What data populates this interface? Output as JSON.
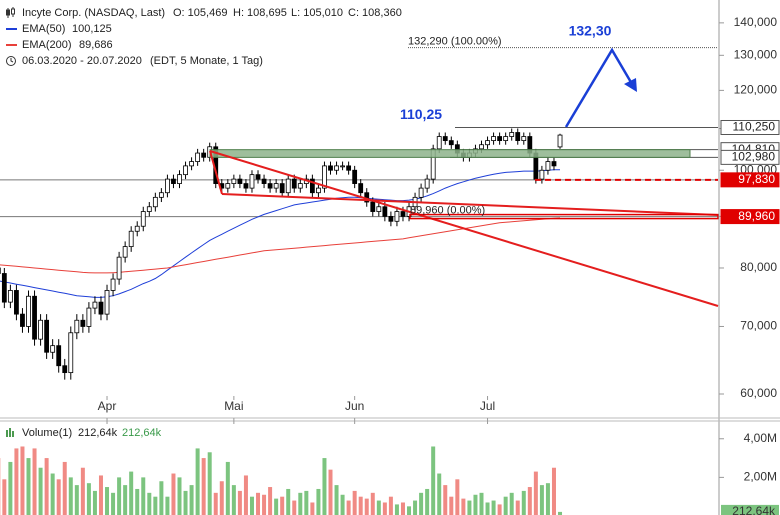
{
  "chart_data": [
    {
      "type": "candlestick",
      "title": "Incyte Corp. (NASDAQ, Last)",
      "quote": [
        "O: 105,469",
        "H: 108,695",
        "L: 105,010",
        "C: 108,360"
      ],
      "period": "06.03.2020 - 20.07.2020",
      "period_note": "(EDT, 5 Monate, 1 Tag)",
      "log_scale": true,
      "ylim": [
        56.8,
        147.5
      ],
      "yticks": [
        {
          "value": 60,
          "label": "60,000"
        },
        {
          "value": 70,
          "label": "70,000"
        },
        {
          "value": 80,
          "label": "80,000"
        },
        {
          "value": 90,
          "label": "90,000"
        },
        {
          "value": 100,
          "label": "100,000"
        },
        {
          "value": 110,
          "label": "110,000"
        },
        {
          "value": 120,
          "label": "120,000"
        },
        {
          "value": 130,
          "label": "130,000"
        },
        {
          "value": 140,
          "label": "140,000"
        }
      ],
      "categories": [
        null,
        null,
        null,
        null,
        null,
        null,
        null,
        null,
        null,
        null,
        null,
        null,
        null,
        null,
        null,
        null,
        null,
        null,
        "Apr",
        null,
        null,
        null,
        null,
        null,
        null,
        null,
        null,
        null,
        null,
        null,
        null,
        null,
        null,
        null,
        null,
        null,
        null,
        null,
        null,
        "Mai",
        null,
        null,
        null,
        null,
        null,
        null,
        null,
        null,
        null,
        null,
        null,
        null,
        null,
        null,
        null,
        null,
        null,
        null,
        null,
        "Jun",
        null,
        null,
        null,
        null,
        null,
        null,
        null,
        null,
        null,
        null,
        null,
        null,
        null,
        null,
        null,
        null,
        null,
        null,
        null,
        null,
        null,
        "Jul",
        null,
        null,
        null,
        null,
        null,
        null,
        null,
        null,
        null,
        null,
        null,
        null
      ],
      "open": [
        80,
        79,
        74,
        76,
        72,
        70,
        75,
        68,
        71,
        66,
        67,
        64,
        63,
        69,
        71,
        70,
        73,
        74,
        72,
        76,
        78,
        82,
        84,
        87,
        88,
        91,
        92,
        94,
        95,
        98,
        97,
        99,
        101,
        102,
        104,
        103,
        105.5,
        97,
        96,
        97,
        98,
        97,
        96,
        99,
        98,
        97,
        96,
        97,
        95,
        98,
        96,
        97,
        98,
        95,
        96,
        101,
        100,
        101,
        101,
        100,
        97,
        95,
        93,
        91,
        92,
        90,
        89,
        91,
        90,
        92,
        94,
        96,
        98,
        105,
        108,
        107,
        106,
        104,
        103,
        104,
        105,
        106,
        107,
        108,
        107,
        108,
        109,
        107,
        108,
        104,
        98,
        100,
        102,
        105.469
      ],
      "high": [
        81,
        80,
        77,
        77,
        73,
        76,
        76,
        72,
        72,
        68,
        68,
        65,
        70,
        72,
        72,
        74,
        75,
        75,
        77,
        79,
        83,
        85,
        88,
        89,
        92,
        93,
        95,
        96,
        99,
        99,
        100,
        102,
        103,
        105,
        105,
        106.5,
        106.5,
        98,
        98,
        99,
        99,
        98,
        100,
        100,
        99,
        98,
        98,
        98,
        99,
        99,
        98,
        99,
        99,
        97,
        102,
        102,
        102,
        102,
        102,
        101,
        98,
        96,
        94,
        93,
        93,
        91,
        92,
        92,
        93,
        95,
        97,
        99,
        106,
        109,
        109,
        108,
        107,
        105,
        105,
        106,
        107,
        108,
        109,
        109,
        109,
        110,
        110,
        109,
        109,
        105,
        101,
        103,
        103,
        108.695
      ],
      "low": [
        78,
        73,
        73,
        71,
        69,
        69,
        67,
        67,
        65,
        65,
        63,
        62,
        62,
        68,
        69,
        69,
        72,
        71,
        71,
        75,
        77,
        81,
        83,
        86,
        87,
        90,
        91,
        93,
        94,
        96,
        96,
        98,
        100,
        101,
        102,
        102,
        96,
        95,
        95,
        96,
        96,
        95,
        95,
        97,
        96,
        95,
        95,
        94,
        94,
        95,
        95,
        96,
        94,
        94,
        95,
        99,
        99,
        100,
        99,
        96,
        94,
        92,
        90,
        90,
        89,
        88,
        88,
        89,
        89,
        91,
        93,
        95,
        97,
        104,
        106,
        105,
        103,
        102,
        102,
        103,
        104,
        105,
        106,
        106,
        106,
        107,
        106,
        106,
        103,
        97,
        97,
        99,
        100,
        105.01
      ],
      "close": [
        79,
        74,
        76,
        72,
        70,
        75,
        68,
        71,
        66,
        67,
        64,
        63,
        69,
        71,
        70,
        73,
        74,
        72,
        76,
        78,
        82,
        84,
        87,
        88,
        91,
        92,
        94,
        95,
        98,
        97,
        99,
        101,
        102,
        104,
        103,
        105.5,
        97,
        96,
        97,
        98,
        97,
        96,
        99,
        98,
        97,
        96,
        97,
        95,
        98,
        96,
        97,
        98,
        95,
        96,
        101,
        100,
        101,
        101,
        100,
        97,
        95,
        93,
        91,
        92,
        90,
        89,
        91,
        90,
        92,
        94,
        96,
        98,
        105,
        108,
        107,
        106,
        104,
        103,
        104,
        105,
        106,
        107,
        108,
        107,
        108,
        109,
        107,
        108,
        104,
        98,
        100,
        102,
        101,
        108.36
      ],
      "up_color": "#ffffff",
      "down_color": "#000000",
      "series": [
        {
          "name": "EMA(50)",
          "legend_value": "100,125",
          "color": "#1f3fd8",
          "values": [
            77.7,
            77.5,
            77.3,
            77.1,
            76.9,
            76.7,
            76.5,
            76.3,
            76.1,
            75.9,
            75.7,
            75.5,
            75.3,
            75.1,
            75.0,
            74.9,
            74.8,
            74.8,
            74.9,
            75.1,
            75.4,
            75.8,
            76.2,
            76.7,
            77.2,
            77.6,
            78.1,
            78.8,
            79.6,
            80.4,
            81.2,
            82.0,
            82.8,
            83.6,
            84.4,
            85.2,
            85.8,
            86.4,
            87.0,
            87.6,
            88.2,
            88.8,
            89.4,
            89.9,
            90.4,
            90.8,
            91.2,
            91.6,
            92.0,
            92.4,
            92.6,
            92.8,
            93.0,
            93.2,
            93.4,
            93.6,
            93.8,
            93.9,
            94.0,
            94.0,
            93.9,
            93.8,
            93.7,
            93.6,
            93.5,
            93.4,
            93.3,
            93.3,
            93.4,
            93.6,
            93.9,
            94.3,
            94.8,
            95.4,
            96.0,
            96.5,
            97.0,
            97.4,
            97.8,
            98.2,
            98.5,
            98.8,
            99.1,
            99.3,
            99.5,
            99.6,
            99.7,
            99.8,
            99.8,
            99.8,
            99.9,
            100.0,
            100.1,
            100.125
          ]
        },
        {
          "name": "EMA(200)",
          "legend_value": "89,686",
          "color": "#e8403a",
          "values": [
            80.6,
            80.5,
            80.4,
            80.3,
            80.2,
            80.1,
            80.0,
            79.9,
            79.8,
            79.7,
            79.6,
            79.5,
            79.4,
            79.3,
            79.2,
            79.15,
            79.1,
            79.1,
            79.1,
            79.15,
            79.2,
            79.3,
            79.4,
            79.5,
            79.6,
            79.7,
            79.8,
            79.9,
            80.0,
            80.2,
            80.4,
            80.6,
            80.8,
            81.0,
            81.2,
            81.4,
            81.6,
            81.8,
            82.0,
            82.2,
            82.4,
            82.6,
            82.8,
            83.0,
            83.2,
            83.3,
            83.4,
            83.5,
            83.6,
            83.7,
            83.8,
            83.9,
            84.0,
            84.1,
            84.2,
            84.3,
            84.4,
            84.5,
            84.6,
            84.7,
            84.8,
            84.9,
            85.0,
            85.1,
            85.2,
            85.3,
            85.4,
            85.5,
            85.7,
            85.9,
            86.1,
            86.3,
            86.5,
            86.7,
            86.9,
            87.1,
            87.3,
            87.5,
            87.7,
            87.9,
            88.1,
            88.3,
            88.5,
            88.7,
            88.8,
            88.9,
            89.0,
            89.1,
            89.2,
            89.3,
            89.4,
            89.5,
            89.6,
            89.686
          ]
        }
      ],
      "zone": {
        "from": 102.98,
        "to": 104.81,
        "color": "#8db38b"
      },
      "levels": [
        {
          "value": 104.81,
          "label": "104,810",
          "color": "#555555"
        },
        {
          "value": 110.25,
          "label": "110,250",
          "color": "#555555"
        },
        {
          "value": 102.98,
          "label": "102,980",
          "color": "#555555"
        },
        {
          "value": 97.83,
          "label": "97,830",
          "color": "#e00000"
        },
        {
          "value": 89.96,
          "label": "89,960",
          "color": "#e00000"
        }
      ],
      "fib": [
        {
          "value": 132.29,
          "label": "132,290 (100.00%)"
        },
        {
          "value": 89.96,
          "label": "89,960 (0.00%)"
        }
      ],
      "annotations": [
        {
          "value": 110.25,
          "text": "110,25"
        },
        {
          "value": 132.3,
          "text": "132,30"
        }
      ]
    },
    {
      "type": "bar",
      "title": "Volume(1)",
      "legend_values": [
        "212,64k",
        "212,64k"
      ],
      "last_label": "212,64k",
      "up_color": "#7cc47f",
      "down_color": "#f08a84",
      "ylim": [
        0,
        4.92
      ],
      "yticks": [
        {
          "value": 2,
          "label": "2,00M"
        },
        {
          "value": 4,
          "label": "4,00M"
        }
      ],
      "values": [
        3.0,
        1.9,
        2.8,
        3.5,
        3.6,
        3.0,
        3.5,
        2.5,
        3.0,
        2.2,
        1.9,
        2.8,
        2.0,
        1.6,
        2.5,
        1.7,
        1.3,
        2.1,
        1.5,
        1.2,
        2.0,
        1.6,
        2.3,
        1.4,
        2.0,
        1.2,
        1.0,
        1.8,
        1.0,
        2.2,
        2.0,
        1.3,
        1.6,
        3.5,
        3.0,
        3.3,
        1.2,
        1.8,
        2.8,
        1.6,
        1.3,
        2.1,
        1.0,
        1.2,
        1.1,
        1.5,
        0.9,
        1.0,
        1.4,
        0.8,
        1.2,
        1.3,
        0.7,
        1.4,
        3.0,
        2.4,
        1.6,
        1.1,
        0.8,
        1.3,
        1.0,
        0.9,
        1.2,
        0.8,
        0.7,
        1.0,
        0.6,
        0.7,
        0.5,
        0.8,
        1.2,
        1.4,
        3.6,
        2.2,
        1.6,
        1.0,
        1.9,
        0.9,
        0.8,
        1.1,
        1.2,
        0.7,
        0.8,
        0.6,
        1.0,
        1.2,
        0.8,
        1.3,
        1.5,
        2.3,
        1.6,
        1.7,
        2.5,
        0.21264
      ]
    }
  ]
}
